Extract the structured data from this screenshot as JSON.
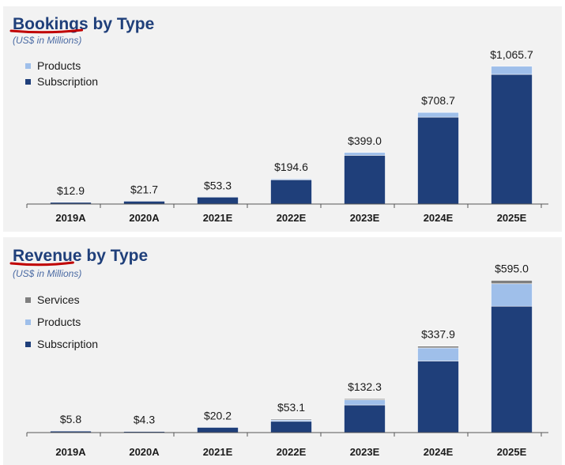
{
  "chart_data": [
    {
      "type": "bar",
      "stacked": true,
      "title_part1": "Bookings",
      "title_part2": " by Type",
      "subtitle": "(US$ in Millions)",
      "categories": [
        "2019A",
        "2020A",
        "2021E",
        "2022E",
        "2023E",
        "2024E",
        "2025E"
      ],
      "series": [
        {
          "name": "Subscription",
          "color": "#1f3f7a",
          "values": [
            12.9,
            21.7,
            53.3,
            189.0,
            377.0,
            672.0,
            1003.0
          ]
        },
        {
          "name": "Products",
          "color": "#9fbfea",
          "values": [
            0,
            0,
            0,
            5.6,
            22.0,
            36.7,
            62.7
          ]
        }
      ],
      "totals": [
        "$12.9",
        "$21.7",
        "$53.3",
        "$194.6",
        "$399.0",
        "$708.7",
        "$1,065.7"
      ],
      "legend_order": [
        "Products",
        "Subscription"
      ],
      "ylim": [
        0,
        1150
      ]
    },
    {
      "type": "bar",
      "stacked": true,
      "title_part1": "Revenue",
      "title_part2": " by Type",
      "subtitle": "(US$ in Millions)",
      "categories": [
        "2019A",
        "2020A",
        "2021E",
        "2022E",
        "2023E",
        "2024E",
        "2025E"
      ],
      "series": [
        {
          "name": "Subscription",
          "color": "#1f3f7a",
          "values": [
            5.8,
            4.3,
            20.2,
            44.0,
            108.0,
            280.0,
            494.0
          ]
        },
        {
          "name": "Products",
          "color": "#9fbfea",
          "values": [
            0,
            0,
            0,
            7.6,
            20.0,
            51.0,
            88.0
          ]
        },
        {
          "name": "Services",
          "color": "#7f7f7f",
          "values": [
            0,
            0,
            0,
            1.5,
            4.3,
            6.9,
            13.0
          ]
        }
      ],
      "totals": [
        "$5.8",
        "$4.3",
        "$20.2",
        "$53.1",
        "$132.3",
        "$337.9",
        "$595.0"
      ],
      "legend_order": [
        "Services",
        "Products",
        "Subscription"
      ],
      "ylim": [
        0,
        640
      ]
    }
  ],
  "colors": {
    "title": "#1f3f7a",
    "underline": "#c00000"
  }
}
